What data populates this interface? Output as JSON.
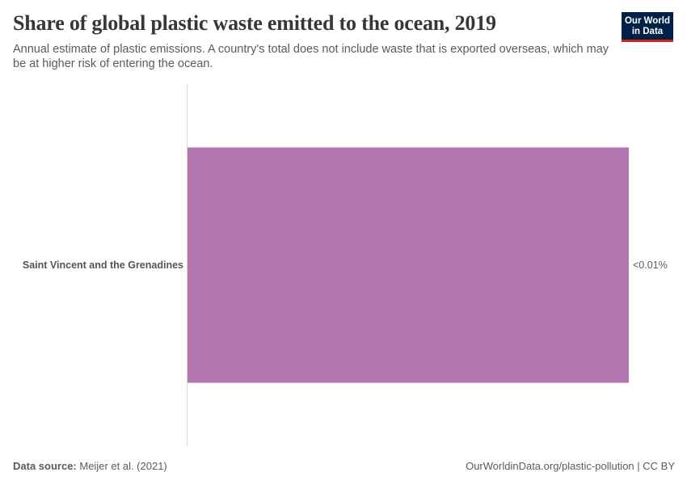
{
  "header": {
    "title": "Share of global plastic waste emitted to the ocean, 2019",
    "subtitle": "Annual estimate of plastic emissions. A country's total does not include waste that is exported overseas, which may be at higher risk of entering the ocean."
  },
  "logo": {
    "line1": "Our World",
    "line2": "in Data"
  },
  "chart_data": {
    "type": "bar",
    "orientation": "horizontal",
    "title": "Share of global plastic waste emitted to the ocean, 2019",
    "categories": [
      "Saint Vincent and the Grenadines"
    ],
    "values": [
      0.005
    ],
    "value_labels": [
      "<0.01%"
    ],
    "unit": "%",
    "xlim": [
      0,
      0.005
    ],
    "grid": false,
    "bar_color": "#b377af"
  },
  "footer": {
    "source_label": "Data source:",
    "source_text": "Meijer et al. (2021)",
    "url_license": "OurWorldinData.org/plastic-pollution | CC BY"
  }
}
